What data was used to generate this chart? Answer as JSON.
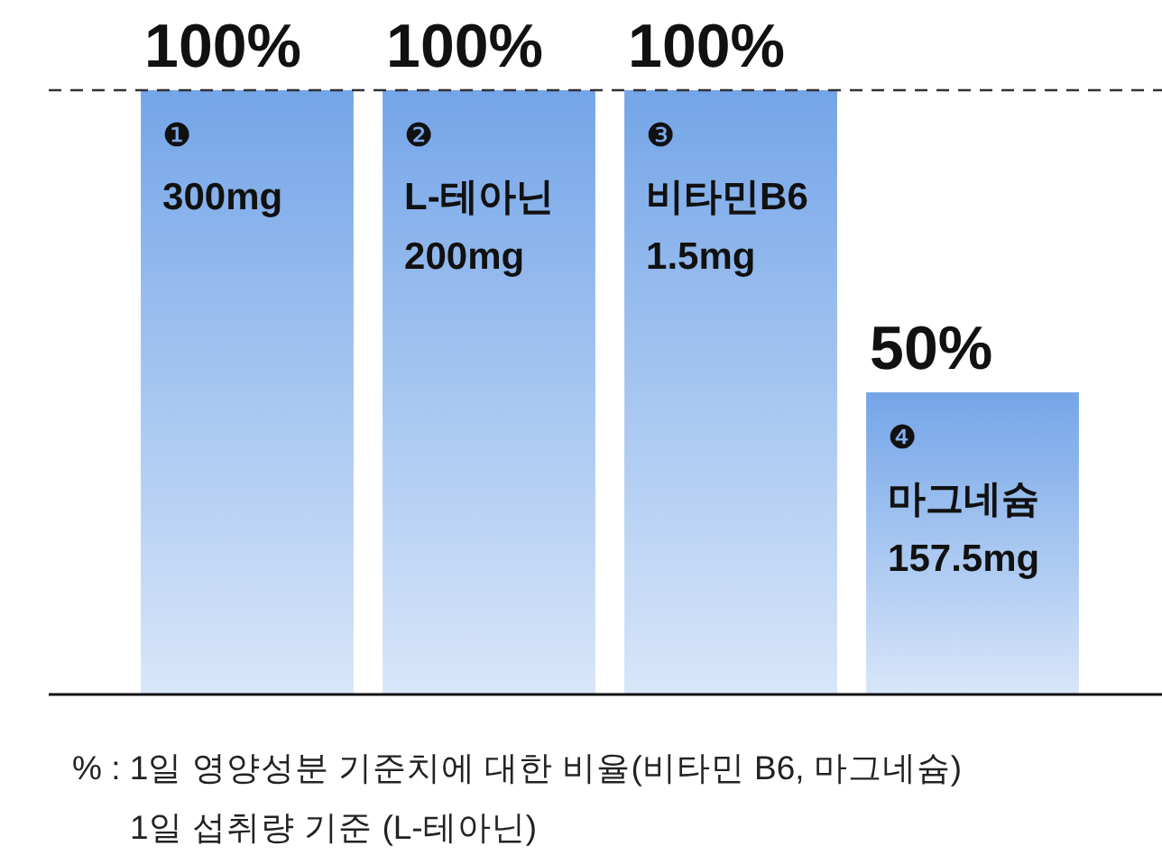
{
  "chart_data": {
    "type": "bar",
    "categories": [
      "❶\n300mg",
      "❷\nL-테아닌\n200mg",
      "❸\n비타민B6\n1.5mg",
      "❹\n마그네슘\n157.5mg"
    ],
    "values": [
      100,
      100,
      100,
      50
    ],
    "color": "#74a5e8",
    "value_labels": [
      "100%",
      "100%",
      "100%",
      "50%"
    ],
    "ref_lines": [
      {
        "axis": "y",
        "value": 100,
        "color": "#333333",
        "line_style": "dashed"
      }
    ],
    "annotations": [
      "% : 1일 영양성분 기준치에 대한 비율(비타민 B6, 마그네슘)",
      "1일 섭취량 기준 (L-테아닌)"
    ]
  }
}
